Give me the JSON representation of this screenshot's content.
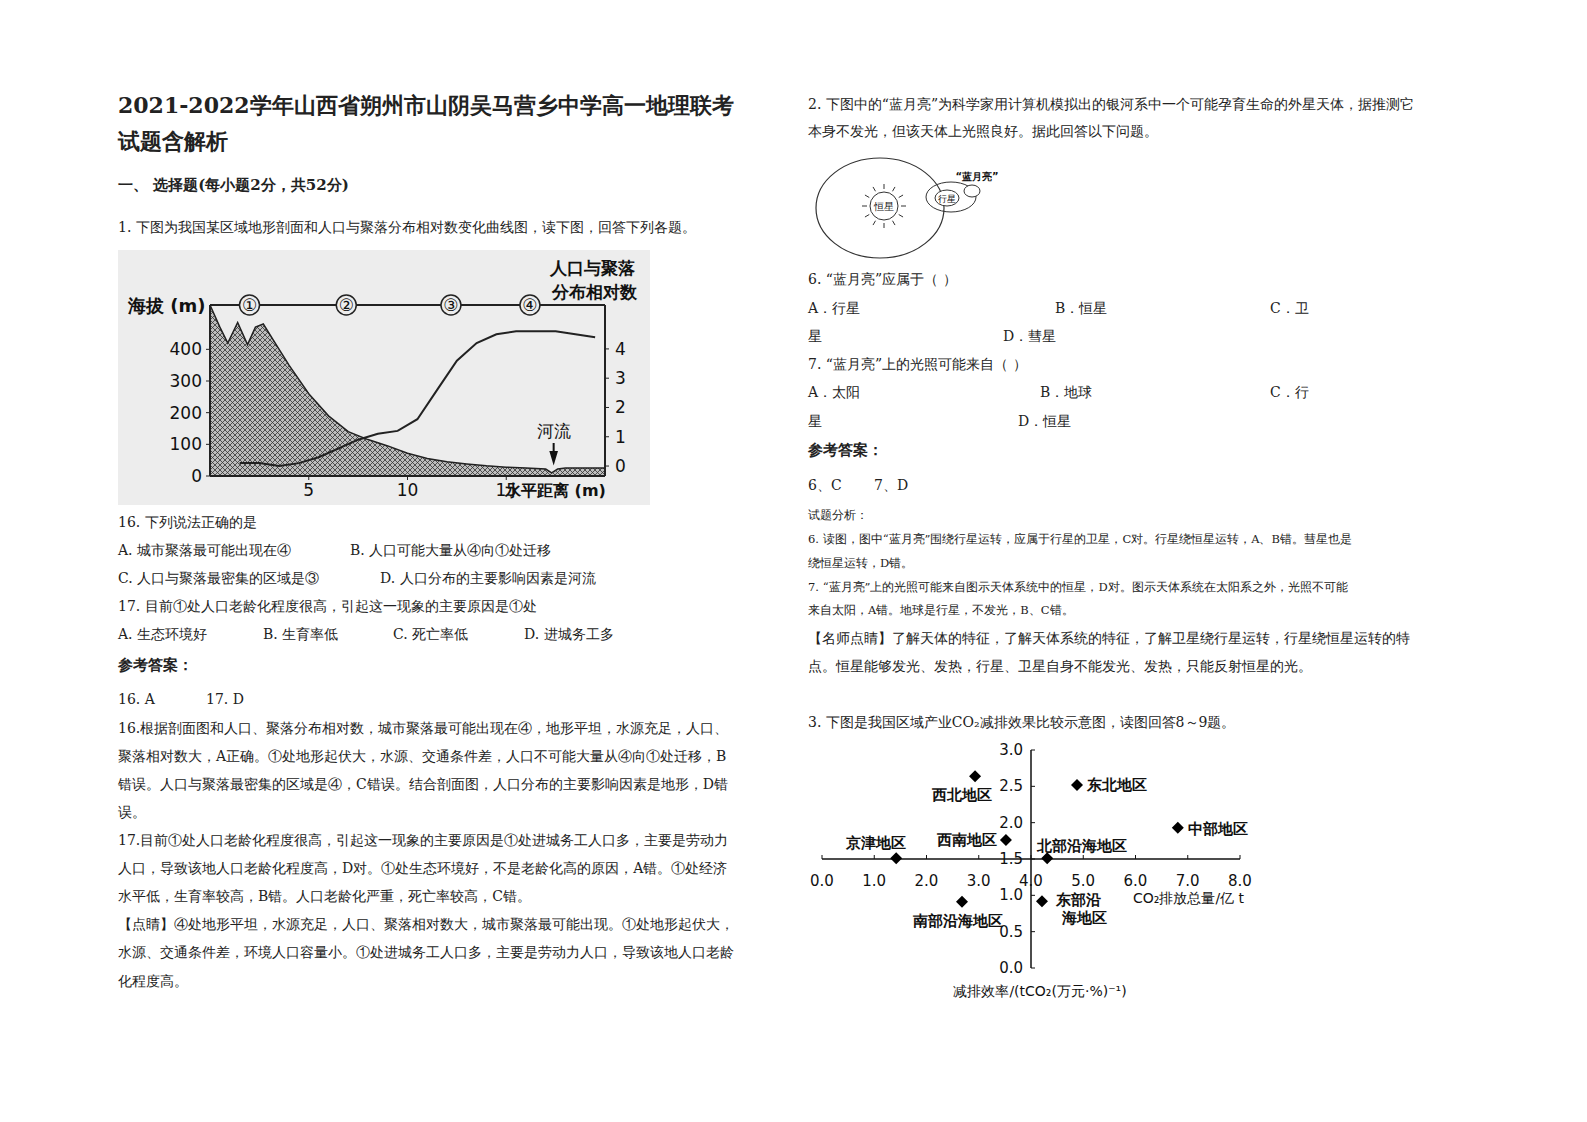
{
  "left": [
    {
      "kind": "title",
      "segs": [
        "2021-2022学年山西省朔州市山阴吴马营乡中学高一地理联考"
      ]
    },
    {
      "kind": "title",
      "segs": [
        "试题含解析"
      ]
    },
    {
      "kind": "heading",
      "segs": [
        "一、 选择题(每小题2分，共52分)"
      ]
    },
    {
      "kind": "text",
      "segs": [
        "1. 下图为我国某区域地形剖面和人口与聚落分布相对数变化曲线图，读下图，回答下列各题。"
      ]
    },
    {
      "kind": "text",
      "segs": [
        "16.  下列说法正确的是"
      ]
    },
    {
      "kind": "options",
      "segs": [
        "A.  城市聚落最可能出现在④",
        "B.  人口可能大量从④向①处迁移"
      ]
    },
    {
      "kind": "options",
      "segs": [
        "C.  人口与聚落最密集的区域是③",
        "D.  人口分布的主要影响因素是河流"
      ]
    },
    {
      "kind": "text",
      "segs": [
        "17.  目前①处人口老龄化程度很高，引起这一现象的主要原因是①处"
      ]
    },
    {
      "kind": "options",
      "segs": [
        "A.  生态环境好",
        "B.  生育率低",
        "C.  死亡率低",
        "D.  进城务工多"
      ]
    },
    {
      "kind": "heading",
      "segs": [
        "参考答案："
      ]
    },
    {
      "kind": "options",
      "segs": [
        "16.  A",
        "17.  D"
      ]
    },
    {
      "kind": "text",
      "segs": [
        "16.根据剖面图和人口、聚落分布相对数，城市聚落最可能出现在④，地形平坦，水源充足，人口、"
      ]
    },
    {
      "kind": "text",
      "segs": [
        "聚落相对数大，A正确。①处地形起伏大，水源、交通条件差，人口不可能大量从④向①处迁移，B"
      ]
    },
    {
      "kind": "text",
      "segs": [
        "错误。人口与聚落最密集的区域是④，C错误。结合剖面图，人口分布的主要影响因素是地形，D错"
      ]
    },
    {
      "kind": "text",
      "segs": [
        "误。"
      ]
    },
    {
      "kind": "text",
      "segs": [
        "17.目前①处人口老龄化程度很高，引起这一现象的主要原因是①处进城务工人口多，主要是劳动力"
      ]
    },
    {
      "kind": "text",
      "segs": [
        "人口，导致该地人口老龄化程度高，D对。①处生态环境好，不是老龄化高的原因，A错。①处经济"
      ]
    },
    {
      "kind": "text",
      "segs": [
        "水平低，生育率较高，B错。人口老龄化严重，死亡率较高，C错。"
      ]
    },
    {
      "kind": "text",
      "segs": [
        "【点睛】④处地形平坦，水源充足，人口、聚落相对数大，城市聚落最可能出现。①处地形起伏大，"
      ]
    },
    {
      "kind": "text",
      "segs": [
        "水源、交通条件差，环境人口容量小。①处进城务工人口多，主要是劳动力人口，导致该地人口老龄"
      ]
    },
    {
      "kind": "text",
      "segs": [
        "化程度高。"
      ]
    }
  ],
  "right": [
    {
      "kind": "text",
      "segs": [
        "2. 下图中的“蓝月亮”为科学家用计算机模拟出的银河系中一个可能孕育生命的外星天体，据推测它"
      ]
    },
    {
      "kind": "text",
      "segs": [
        "本身不发光，但该天体上光照良好。据此回答以下问题。"
      ]
    },
    {
      "kind": "text",
      "segs": [
        "6.  “蓝月亮”应属于（          ）"
      ]
    },
    {
      "kind": "options",
      "segs": [
        "A．行星",
        "B．恒星",
        "C．卫"
      ]
    },
    {
      "kind": "options",
      "segs": [
        "星",
        "D．彗星"
      ]
    },
    {
      "kind": "text",
      "segs": [
        "7.  “蓝月亮”上的光照可能来自（          ）"
      ]
    },
    {
      "kind": "options",
      "segs": [
        "A．太阳",
        "B．地球",
        "C．行"
      ]
    },
    {
      "kind": "options",
      "segs": [
        "星",
        "D．恒星"
      ]
    },
    {
      "kind": "heading",
      "segs": [
        "参考答案："
      ]
    },
    {
      "kind": "options",
      "segs": [
        "6、C",
        "7、D"
      ]
    },
    {
      "kind": "small",
      "segs": [
        "试题分析："
      ]
    },
    {
      "kind": "small",
      "segs": [
        "6. 读图，图中“蓝月亮”围绕行星运转，应属于行星的卫星，C对。行星绕恒星运转，A、B错。彗星也是"
      ]
    },
    {
      "kind": "small",
      "segs": [
        "绕恒星运转，D错。"
      ]
    },
    {
      "kind": "small",
      "segs": [
        "7. “蓝月亮”上的光照可能来自图示天体系统中的恒星，D对。图示天体系统在太阳系之外，光照不可能"
      ]
    },
    {
      "kind": "small",
      "segs": [
        "来自太阳，A错。地球是行星，不发光，B、C错。"
      ]
    },
    {
      "kind": "text",
      "segs": [
        "【名师点睛】了解天体的特征，了解天体系统的特征，了解卫星绕行星运转，行星绕恒星运转的特"
      ]
    },
    {
      "kind": "text",
      "segs": [
        "点。恒星能够发光、发热，行星、卫星自身不能发光、发热，只能反射恒星的光。"
      ]
    },
    {
      "kind": "text",
      "segs": [
        "3. 下图是我国区域产业CO₂减排效果比较示意图，读图回答8～9题。"
      ]
    }
  ],
  "figure1": {
    "ylabel": "海拔 (m)",
    "y2label": [
      "人口与聚落",
      "分布相对数"
    ],
    "xlabel": "水平距离 (m)",
    "river_label": "河流",
    "river_x": 17.4,
    "xlim": [
      0,
      20
    ],
    "ylim": [
      0,
      540
    ],
    "y2lim": [
      -0.34,
      5.5
    ],
    "xticks": [
      5,
      10,
      15
    ],
    "yticks": [
      0,
      100,
      200,
      300,
      400
    ],
    "y2ticks": [
      0,
      1,
      2,
      3,
      4
    ],
    "markers": [
      {
        "label": "①",
        "x": 2
      },
      {
        "label": "②",
        "x": 6.9
      },
      {
        "label": "③",
        "x": 12.2
      },
      {
        "label": "④",
        "x": 16.2
      }
    ],
    "profile": {
      "x": [
        0,
        0.5,
        0.9,
        1.4,
        1.9,
        2.3,
        2.7,
        3.2,
        4,
        5,
        6,
        7,
        8,
        9,
        10,
        11,
        12,
        13,
        14,
        15,
        16,
        17,
        17.3,
        17.6,
        18,
        19,
        20
      ],
      "values": [
        540,
        470,
        420,
        485,
        415,
        470,
        480,
        430,
        350,
        260,
        190,
        140,
        115,
        95,
        72,
        55,
        45,
        38,
        32,
        28,
        25,
        22,
        10,
        22,
        25,
        25,
        25
      ]
    },
    "population": {
      "x": [
        1.5,
        2.5,
        3.5,
        4.5,
        5.5,
        6.5,
        7.5,
        8.5,
        9.5,
        10.5,
        11.5,
        12.5,
        13.5,
        14.5,
        15.5,
        16.5,
        17.5,
        18.5,
        19.5
      ],
      "values": [
        0.1,
        0.1,
        0.0,
        0.1,
        0.3,
        0.6,
        0.9,
        1.1,
        1.2,
        1.6,
        2.6,
        3.6,
        4.2,
        4.5,
        4.6,
        4.6,
        4.6,
        4.5,
        4.4
      ]
    }
  },
  "figure2": {
    "star": "恒星",
    "planet": "行星",
    "moon": "“蓝月亮”"
  },
  "chart_data": {
    "type": "scatter",
    "x": [
      2.93,
      4.88,
      6.81,
      1.42,
      3.52,
      4.31,
      4.21,
      2.68
    ],
    "values": [
      2.64,
      2.52,
      1.93,
      1.51,
      1.76,
      1.51,
      0.92,
      0.91
    ],
    "labels": [
      "西北地区",
      "东北地区",
      "中部地区",
      "京津地区",
      "西南地区",
      "北部沿海地区",
      "东部沿海地区",
      "南部沿海地区"
    ],
    "xlabel": "CO₂排放总量/亿 t",
    "ylabel": "减排效率/(tCO₂(万元·%)⁻¹)",
    "xlim": [
      0,
      8
    ],
    "ylim": [
      0,
      3
    ],
    "xticks": [
      {
        "value": 0,
        "label": "0.0"
      },
      {
        "value": 1,
        "label": "1.0"
      },
      {
        "value": 2,
        "label": "2.0"
      },
      {
        "value": 3,
        "label": "3.0"
      },
      {
        "value": 4,
        "label": "4.0"
      },
      {
        "value": 5,
        "label": "5.0"
      },
      {
        "value": 6,
        "label": "6.0"
      },
      {
        "value": 7,
        "label": "7.0"
      },
      {
        "value": 8,
        "label": "8.0"
      }
    ],
    "yticks": [
      {
        "value": 0,
        "label": "0.0"
      },
      {
        "value": 0.5,
        "label": "0.5"
      },
      {
        "value": 1,
        "label": "1.0"
      },
      {
        "value": 1.5,
        "label": "1.5"
      },
      {
        "value": 2,
        "label": "2.0"
      },
      {
        "value": 2.5,
        "label": "2.5"
      },
      {
        "value": 3,
        "label": "3.0"
      }
    ],
    "axis_cross": {
      "x": 4,
      "y": 1.5
    },
    "marker": "diamond",
    "color": "#000000",
    "grid": false
  }
}
